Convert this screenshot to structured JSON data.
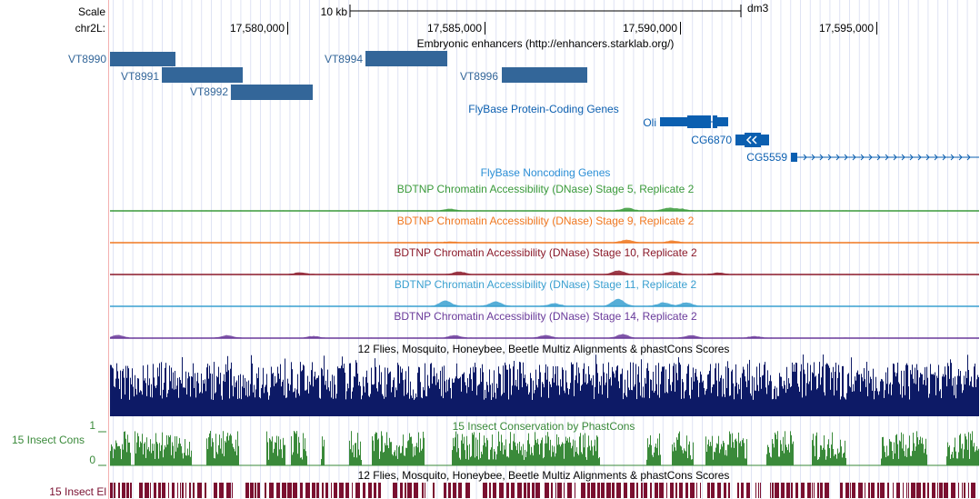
{
  "header": {
    "scale_label": "Scale",
    "chrom_label": "chr2L:",
    "scale_bar_text": "10 kb",
    "assembly": "dm3",
    "positions": [
      "17,580,000",
      "17,585,000",
      "17,590,000",
      "17,595,000"
    ]
  },
  "tracks": {
    "enhancers": {
      "title": "Embryonic enhancers (http://enhancers.starklab.org/)",
      "color": "#336699",
      "items": [
        {
          "label": "VT8990"
        },
        {
          "label": "VT8991"
        },
        {
          "label": "VT8992"
        },
        {
          "label": "VT8994"
        },
        {
          "label": "VT8996"
        }
      ]
    },
    "protein_genes": {
      "title": "FlyBase Protein-Coding Genes",
      "color": "#0b5fb0",
      "items": [
        {
          "label": "Oli"
        },
        {
          "label": "CG6870"
        },
        {
          "label": "CG5559"
        }
      ]
    },
    "noncoding": {
      "title": "FlyBase Noncoding Genes",
      "color": "#2b8fd6"
    },
    "dnase": [
      {
        "title": "BDTNP Chromatin Accessibility (DNase) Stage 5, Replicate 2",
        "color": "#3a9a3a"
      },
      {
        "title": "BDTNP Chromatin Accessibility (DNase) Stage 9, Replicate 2",
        "color": "#f07820"
      },
      {
        "title": "BDTNP Chromatin Accessibility (DNase) Stage 10, Replicate 2",
        "color": "#8b1a2a"
      },
      {
        "title": "BDTNP Chromatin Accessibility (DNase) Stage 11, Replicate 2",
        "color": "#3aa0d0"
      },
      {
        "title": "BDTNP Chromatin Accessibility (DNase) Stage 14, Replicate 2",
        "color": "#6a3a9a"
      }
    ],
    "multiz": {
      "title": "12 Flies, Mosquito, Honeybee, Beetle Multiz Alignments & phastCons Scores",
      "color": "#0d1a66"
    },
    "insect_cons": {
      "title": "15 Insect Conservation by PhastCons",
      "side_label": "15 Insect Cons",
      "max_label": "1",
      "min_label": "0",
      "color": "#3a8a3a"
    },
    "insect_el": {
      "title": "12 Flies, Mosquito, Honeybee, Beetle Multiz Alignments & phastCons Scores",
      "side_label": "15 Insect El",
      "color": "#7a1030"
    }
  }
}
